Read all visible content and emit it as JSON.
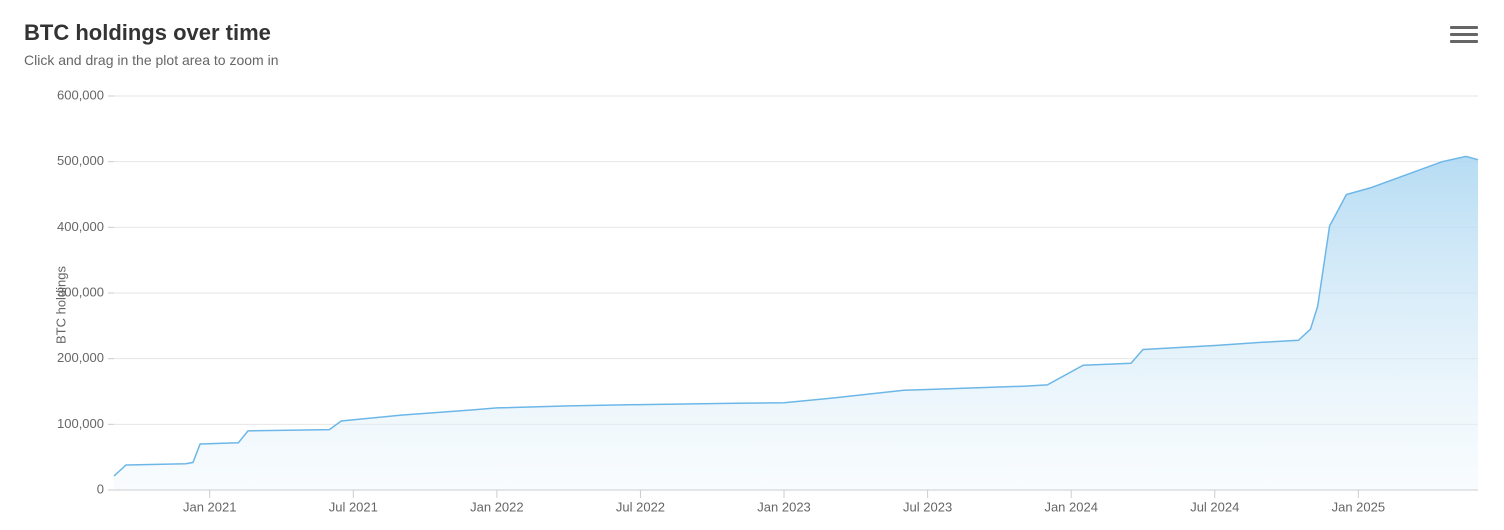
{
  "title": "BTC holdings over time",
  "subtitle": "Click and drag in the plot area to zoom in",
  "y_axis_title": "BTC holdings",
  "chart": {
    "type": "area",
    "background_color": "#ffffff",
    "grid_color": "#e6e6e6",
    "axis_color": "#cccccc",
    "tick_label_color": "#666666",
    "tick_fontsize": 13,
    "title_fontsize": 22,
    "subtitle_fontsize": 14,
    "line_color": "#6db7e8",
    "line_width": 1.5,
    "fill_gradient_top": "#aed8f2",
    "fill_gradient_bottom": "#eef7fc",
    "fill_gradient_top_opacity": 0.9,
    "fill_gradient_bottom_opacity": 0.4,
    "x_range_months": [
      0,
      57
    ],
    "ylim": [
      0,
      600000
    ],
    "ytick_step": 100000,
    "y_ticks": [
      {
        "v": 0,
        "label": "0"
      },
      {
        "v": 100000,
        "label": "100,000"
      },
      {
        "v": 200000,
        "label": "200,000"
      },
      {
        "v": 300000,
        "label": "300,000"
      },
      {
        "v": 400000,
        "label": "400,000"
      },
      {
        "v": 500000,
        "label": "500,000"
      },
      {
        "v": 600000,
        "label": "600,000"
      }
    ],
    "x_ticks": [
      {
        "m": 4,
        "label": "Jan 2021"
      },
      {
        "m": 10,
        "label": "Jul 2021"
      },
      {
        "m": 16,
        "label": "Jan 2022"
      },
      {
        "m": 22,
        "label": "Jul 2022"
      },
      {
        "m": 28,
        "label": "Jan 2023"
      },
      {
        "m": 34,
        "label": "Jul 2023"
      },
      {
        "m": 40,
        "label": "Jan 2024"
      },
      {
        "m": 46,
        "label": "Jul 2024"
      },
      {
        "m": 52,
        "label": "Jan 2025"
      }
    ],
    "series": [
      {
        "m": 0.0,
        "v": 21500
      },
      {
        "m": 0.5,
        "v": 38000
      },
      {
        "m": 3.0,
        "v": 40000
      },
      {
        "m": 3.3,
        "v": 42000
      },
      {
        "m": 3.6,
        "v": 70000
      },
      {
        "m": 5.2,
        "v": 72000
      },
      {
        "m": 5.6,
        "v": 90000
      },
      {
        "m": 9.0,
        "v": 92000
      },
      {
        "m": 9.5,
        "v": 105000
      },
      {
        "m": 12.0,
        "v": 114000
      },
      {
        "m": 15.0,
        "v": 122000
      },
      {
        "m": 16.0,
        "v": 125000
      },
      {
        "m": 19.0,
        "v": 128000
      },
      {
        "m": 22.0,
        "v": 130000
      },
      {
        "m": 26.0,
        "v": 132000
      },
      {
        "m": 28.0,
        "v": 133000
      },
      {
        "m": 30.0,
        "v": 140000
      },
      {
        "m": 33.0,
        "v": 152000
      },
      {
        "m": 34.0,
        "v": 153000
      },
      {
        "m": 38.0,
        "v": 158000
      },
      {
        "m": 39.0,
        "v": 160000
      },
      {
        "m": 40.5,
        "v": 190000
      },
      {
        "m": 42.5,
        "v": 193000
      },
      {
        "m": 43.0,
        "v": 214000
      },
      {
        "m": 46.0,
        "v": 220000
      },
      {
        "m": 48.0,
        "v": 225000
      },
      {
        "m": 49.5,
        "v": 228000
      },
      {
        "m": 50.0,
        "v": 245000
      },
      {
        "m": 50.3,
        "v": 280000
      },
      {
        "m": 50.8,
        "v": 402000
      },
      {
        "m": 51.5,
        "v": 450000
      },
      {
        "m": 52.5,
        "v": 460000
      },
      {
        "m": 54.0,
        "v": 480000
      },
      {
        "m": 55.5,
        "v": 500000
      },
      {
        "m": 56.5,
        "v": 508000
      },
      {
        "m": 57.0,
        "v": 503000
      }
    ]
  }
}
